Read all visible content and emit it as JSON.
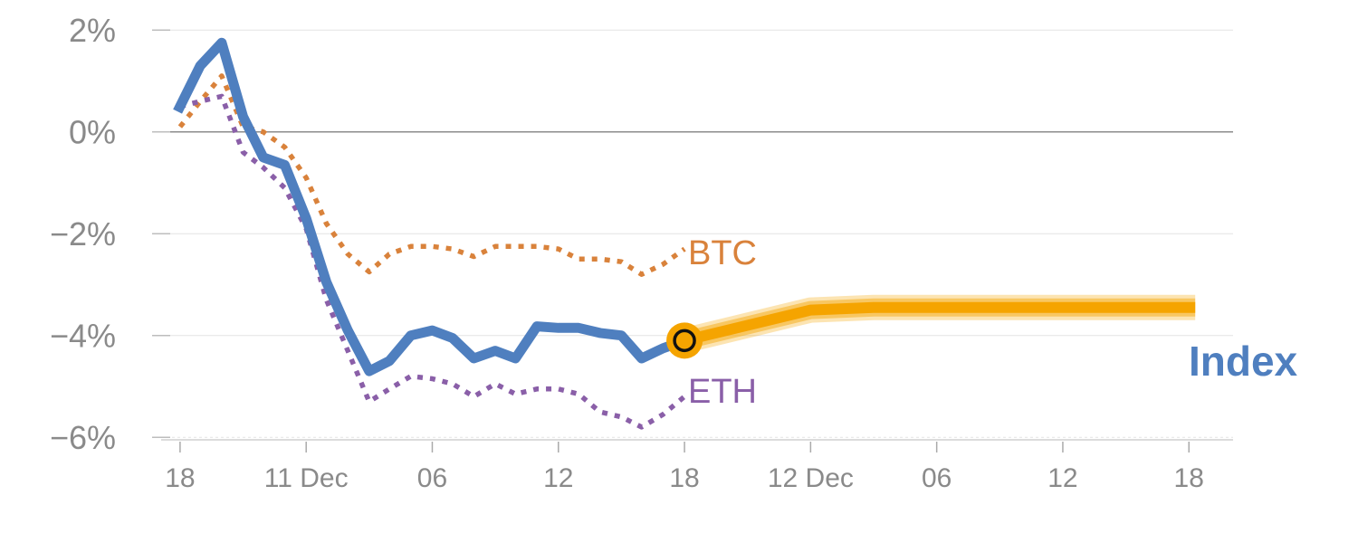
{
  "chart_data": {
    "type": "line",
    "y_ticks": [
      {
        "value": 2,
        "label": "2%"
      },
      {
        "value": 0,
        "label": "0%"
      },
      {
        "value": -2,
        "label": "−2%"
      },
      {
        "value": -4,
        "label": "−4%"
      },
      {
        "value": -6,
        "label": "−6%"
      }
    ],
    "ylim": [
      -6.05,
      2.2
    ],
    "xlim": [
      -0.15,
      8.35
    ],
    "x_ticks": [
      {
        "x": 0,
        "label": "18"
      },
      {
        "x": 1,
        "label": "11 Dec"
      },
      {
        "x": 2,
        "label": "06"
      },
      {
        "x": 3,
        "label": "12"
      },
      {
        "x": 4,
        "label": "18"
      },
      {
        "x": 5,
        "label": "12 Dec"
      },
      {
        "x": 6,
        "label": "06"
      },
      {
        "x": 7,
        "label": "12"
      },
      {
        "x": 8,
        "label": "18"
      }
    ],
    "grid": true,
    "zero_line": true,
    "series": [
      {
        "name": "Index",
        "style": "solid",
        "color": "#4f7fbf",
        "points": [
          [
            -0.02,
            0.4
          ],
          [
            0.16,
            1.3
          ],
          [
            0.33,
            1.75
          ],
          [
            0.5,
            0.3
          ],
          [
            0.66,
            -0.5
          ],
          [
            0.83,
            -0.65
          ],
          [
            1.0,
            -1.7
          ],
          [
            1.16,
            -2.95
          ],
          [
            1.33,
            -3.9
          ],
          [
            1.5,
            -4.7
          ],
          [
            1.66,
            -4.5
          ],
          [
            1.83,
            -4.0
          ],
          [
            2.0,
            -3.9
          ],
          [
            2.16,
            -4.05
          ],
          [
            2.33,
            -4.45
          ],
          [
            2.5,
            -4.3
          ],
          [
            2.66,
            -4.45
          ],
          [
            2.83,
            -3.82
          ],
          [
            3.0,
            -3.85
          ],
          [
            3.16,
            -3.85
          ],
          [
            3.33,
            -3.95
          ],
          [
            3.5,
            -4.0
          ],
          [
            3.66,
            -4.45
          ],
          [
            3.83,
            -4.25
          ],
          [
            4.0,
            -4.1
          ]
        ]
      },
      {
        "name": "BTC",
        "style": "dotted",
        "color": "#d9823b",
        "points": [
          [
            0.0,
            0.1
          ],
          [
            0.16,
            0.6
          ],
          [
            0.33,
            1.1
          ],
          [
            0.5,
            0.1
          ],
          [
            0.66,
            0.0
          ],
          [
            0.83,
            -0.3
          ],
          [
            1.0,
            -0.9
          ],
          [
            1.16,
            -1.8
          ],
          [
            1.33,
            -2.4
          ],
          [
            1.5,
            -2.75
          ],
          [
            1.66,
            -2.4
          ],
          [
            1.83,
            -2.25
          ],
          [
            2.0,
            -2.25
          ],
          [
            2.16,
            -2.3
          ],
          [
            2.33,
            -2.45
          ],
          [
            2.5,
            -2.25
          ],
          [
            2.66,
            -2.25
          ],
          [
            2.83,
            -2.25
          ],
          [
            3.0,
            -2.3
          ],
          [
            3.16,
            -2.5
          ],
          [
            3.33,
            -2.5
          ],
          [
            3.5,
            -2.55
          ],
          [
            3.66,
            -2.8
          ],
          [
            3.83,
            -2.6
          ],
          [
            4.0,
            -2.3
          ]
        ]
      },
      {
        "name": "ETH",
        "style": "dotted",
        "color": "#8a5fa8",
        "points": [
          [
            0.0,
            0.5
          ],
          [
            0.16,
            0.6
          ],
          [
            0.33,
            0.7
          ],
          [
            0.5,
            -0.4
          ],
          [
            0.66,
            -0.7
          ],
          [
            0.83,
            -1.1
          ],
          [
            1.0,
            -1.9
          ],
          [
            1.16,
            -3.3
          ],
          [
            1.33,
            -4.3
          ],
          [
            1.5,
            -5.3
          ],
          [
            1.66,
            -5.05
          ],
          [
            1.83,
            -4.8
          ],
          [
            2.0,
            -4.85
          ],
          [
            2.16,
            -4.95
          ],
          [
            2.33,
            -5.2
          ],
          [
            2.5,
            -4.95
          ],
          [
            2.66,
            -5.15
          ],
          [
            2.83,
            -5.05
          ],
          [
            3.0,
            -5.05
          ],
          [
            3.16,
            -5.15
          ],
          [
            3.33,
            -5.5
          ],
          [
            3.5,
            -5.6
          ],
          [
            3.66,
            -5.8
          ],
          [
            3.83,
            -5.55
          ],
          [
            4.0,
            -5.2
          ]
        ]
      },
      {
        "name": "Index forecast",
        "style": "band",
        "color": "#f5a400",
        "points": [
          [
            4.0,
            -4.1
          ],
          [
            5.0,
            -3.5
          ],
          [
            5.5,
            -3.45
          ],
          [
            6.0,
            -3.45
          ],
          [
            7.0,
            -3.45
          ],
          [
            8.05,
            -3.45
          ]
        ]
      }
    ],
    "labels": {
      "btc": "BTC",
      "eth": "ETH",
      "index": "Index"
    },
    "current_marker": {
      "x": 4.0,
      "y": -4.1
    }
  }
}
